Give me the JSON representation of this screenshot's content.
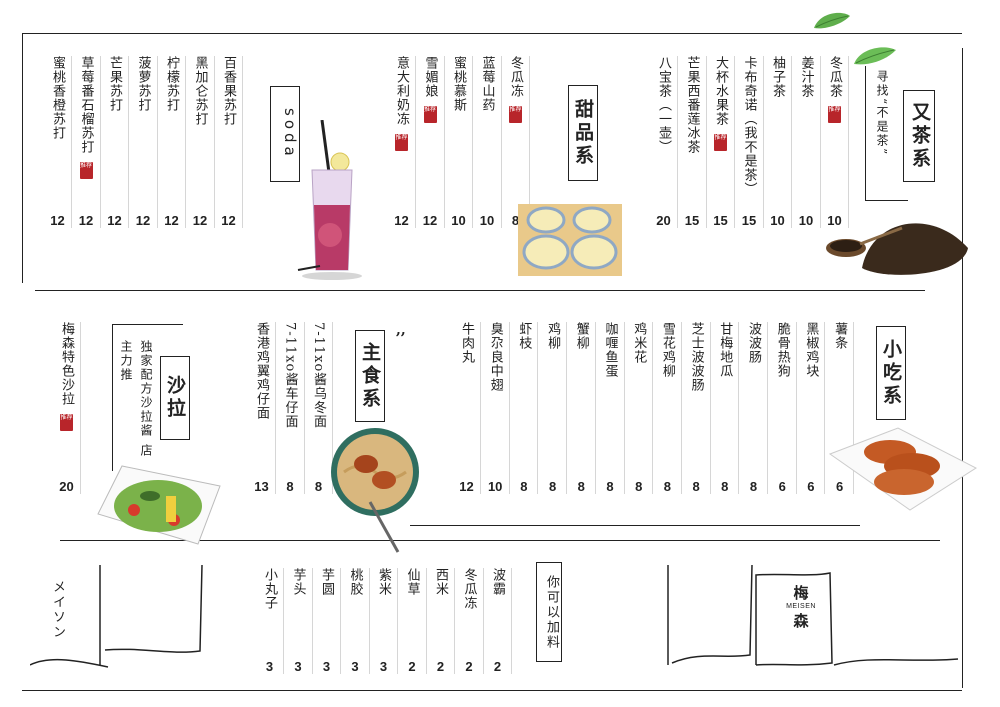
{
  "rec_badge": "推荐",
  "sections": {
    "soda": {
      "title": "soda",
      "items": [
        {
          "name": "蜜桃香橙苏打",
          "price": "12",
          "rec": false
        },
        {
          "name": "草莓番石榴苏打",
          "price": "12",
          "rec": true
        },
        {
          "name": "芒果苏打",
          "price": "12",
          "rec": false
        },
        {
          "name": "菠萝苏打",
          "price": "12",
          "rec": false
        },
        {
          "name": "柠檬苏打",
          "price": "12",
          "rec": false
        },
        {
          "name": "黑加仑苏打",
          "price": "12",
          "rec": false
        },
        {
          "name": "百香果苏打",
          "price": "12",
          "rec": false
        }
      ]
    },
    "dessert": {
      "title": "甜品系",
      "items": [
        {
          "name": "意大利奶冻",
          "price": "12",
          "rec": true
        },
        {
          "name": "雪媚娘",
          "price": "12",
          "rec": true
        },
        {
          "name": "蜜桃慕斯",
          "price": "10",
          "rec": false
        },
        {
          "name": "蓝莓山药",
          "price": "10",
          "rec": false
        },
        {
          "name": "冬瓜冻",
          "price": "8",
          "rec": true
        }
      ]
    },
    "tea": {
      "title": "又茶系",
      "subtitle": "寻找“不是茶”",
      "items": [
        {
          "name": "八宝茶（一壶）",
          "price": "20",
          "rec": false
        },
        {
          "name": "芒果西番莲冰茶",
          "price": "15",
          "rec": false
        },
        {
          "name": "大杯水果茶",
          "price": "15",
          "rec": true
        },
        {
          "name": "卡布奇诺（我不是茶）",
          "price": "15",
          "rec": false
        },
        {
          "name": "柚子茶",
          "price": "10",
          "rec": false
        },
        {
          "name": "姜汁茶",
          "price": "10",
          "rec": false
        },
        {
          "name": "冬瓜茶",
          "price": "10",
          "rec": true
        }
      ]
    },
    "salad": {
      "title": "沙拉",
      "subtitle": "独家配方沙拉酱 店主力推",
      "items": [
        {
          "name": "梅森特色沙拉",
          "price": "20",
          "rec": true
        }
      ]
    },
    "main": {
      "title": "主食系",
      "items": [
        {
          "name": "香港鸡翼鸡仔面",
          "price": "13",
          "rec": false
        },
        {
          "name": "7-11xo酱车仔面",
          "price": "8",
          "rec": false
        },
        {
          "name": "7-11xo酱乌冬面",
          "price": "8",
          "rec": false
        }
      ]
    },
    "snack": {
      "title": "小吃系",
      "items": [
        {
          "name": "牛肉丸",
          "price": "12"
        },
        {
          "name": "臭尕良中翅",
          "price": "10"
        },
        {
          "name": "虾枝",
          "price": "8"
        },
        {
          "name": "鸡柳",
          "price": "8"
        },
        {
          "name": "蟹柳",
          "price": "8"
        },
        {
          "name": "咖喱鱼蛋",
          "price": "8"
        },
        {
          "name": "鸡米花",
          "price": "8"
        },
        {
          "name": "雪花鸡柳",
          "price": "8"
        },
        {
          "name": "芝士波波肠",
          "price": "8"
        },
        {
          "name": "甘梅地瓜",
          "price": "8"
        },
        {
          "name": "波波肠",
          "price": "8"
        },
        {
          "name": "脆骨热狗",
          "price": "6"
        },
        {
          "name": "黑椒鸡块",
          "price": "6"
        },
        {
          "name": "薯条",
          "price": "6"
        }
      ]
    },
    "addon": {
      "title": "你可以加料",
      "items": [
        {
          "name": "小丸子",
          "price": "3"
        },
        {
          "name": "芋头",
          "price": "3"
        },
        {
          "name": "芋圆",
          "price": "3"
        },
        {
          "name": "桃胶",
          "price": "3"
        },
        {
          "name": "紫米",
          "price": "3"
        },
        {
          "name": "仙草",
          "price": "2"
        },
        {
          "name": "西米",
          "price": "2"
        },
        {
          "name": "冬瓜冻",
          "price": "2"
        },
        {
          "name": "波霸",
          "price": "2"
        }
      ]
    }
  },
  "brand": {
    "cn": "梅森",
    "en": "MEISEN",
    "side_script": "メイソン"
  },
  "colors": {
    "accent_red": "#b8252a",
    "line": "#222222",
    "leaf": "#5fae4c"
  }
}
